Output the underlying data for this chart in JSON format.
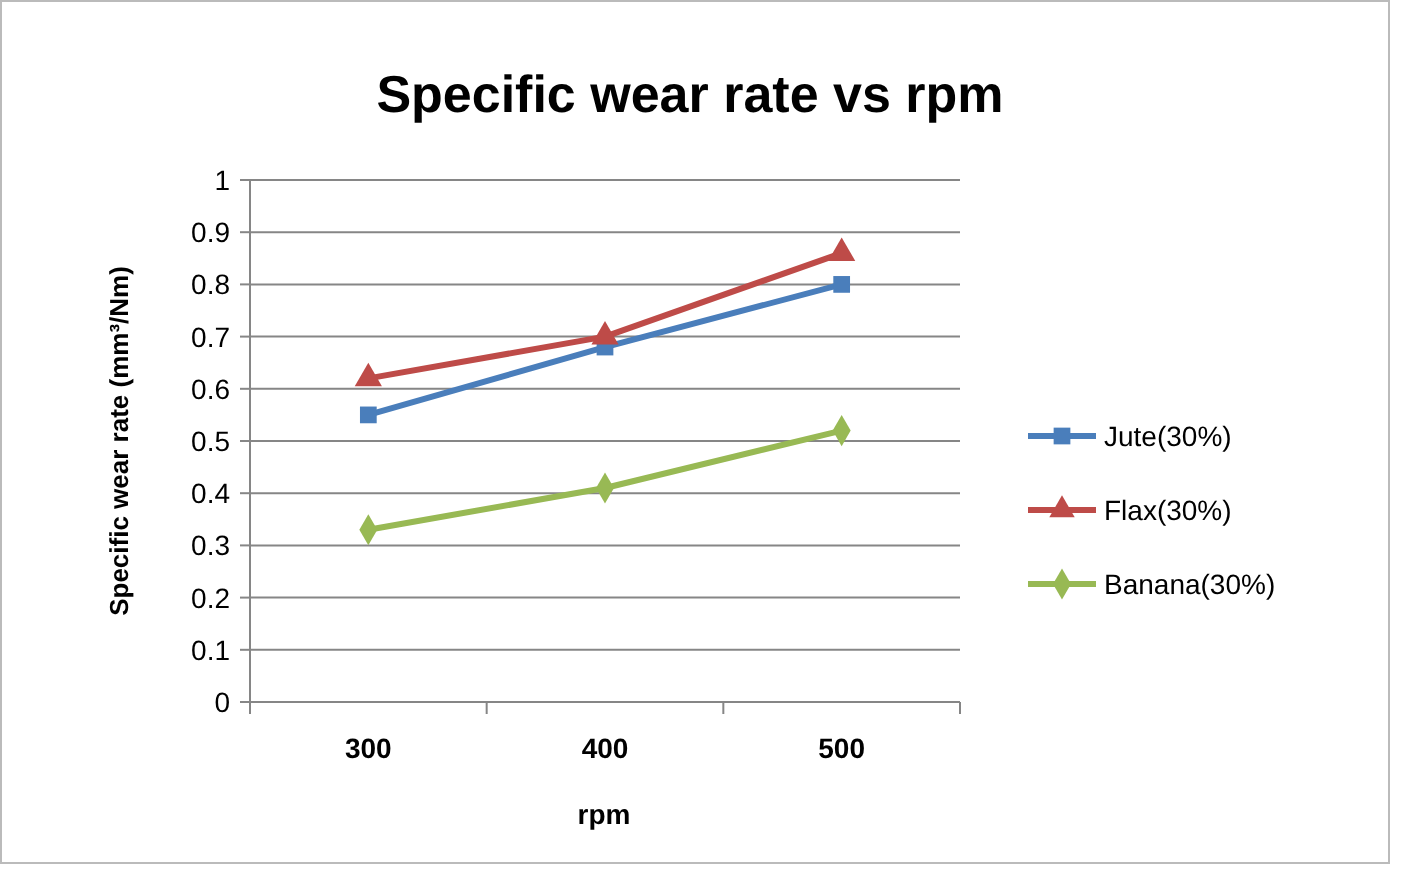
{
  "chart_data": {
    "type": "line",
    "title": "Specific wear rate vs rpm",
    "xlabel": "rpm",
    "ylabel": "Specific wear rate (mm³/Nm)",
    "categories": [
      "300",
      "400",
      "500"
    ],
    "series": [
      {
        "name": "Jute(30%)",
        "color": "#4a7ebb",
        "marker": "square",
        "values": [
          0.55,
          0.68,
          0.8
        ]
      },
      {
        "name": "Flax(30%)",
        "color": "#be4b48",
        "marker": "triangle",
        "values": [
          0.62,
          0.7,
          0.86
        ]
      },
      {
        "name": "Banana(30%)",
        "color": "#98b954",
        "marker": "diamond",
        "values": [
          0.33,
          0.41,
          0.52
        ]
      }
    ],
    "ylim": [
      0,
      1
    ],
    "yticks": [
      0,
      0.1,
      0.2,
      0.3,
      0.4,
      0.5,
      0.6,
      0.7,
      0.8,
      0.9,
      1
    ],
    "grid": "y",
    "legend": "right",
    "line_style": "solid"
  }
}
